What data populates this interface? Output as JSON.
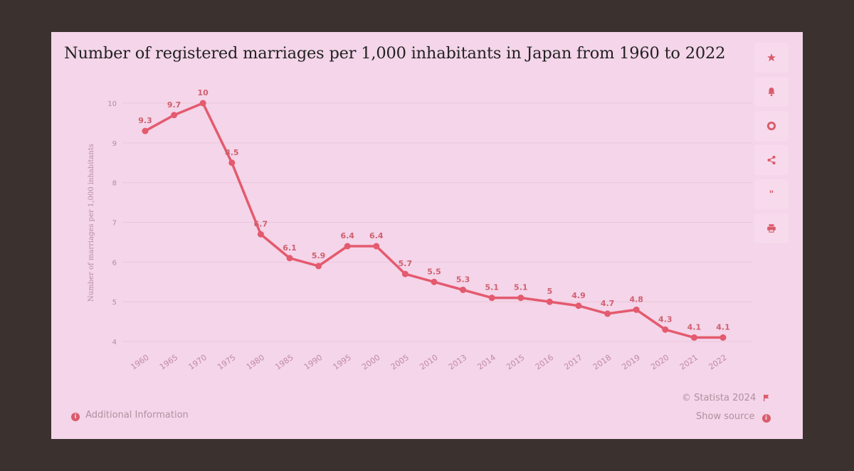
{
  "chart_data": {
    "type": "line",
    "title": "Number of registered marriages per 1,000 inhabitants in Japan from 1960 to 2022",
    "xlabel": "",
    "ylabel": "Number of marriages per 1,000 inhabitants",
    "ylim": [
      4,
      10
    ],
    "yticks": [
      "4",
      "5",
      "6",
      "7",
      "8",
      "9",
      "10"
    ],
    "categories": [
      "1960",
      "1965",
      "1970",
      "1975",
      "1980",
      "1985",
      "1990",
      "1995",
      "2000",
      "2005",
      "2010",
      "2013",
      "2014",
      "2015",
      "2016",
      "2017",
      "2018",
      "2019",
      "2020",
      "2021",
      "2022"
    ],
    "series": [
      {
        "values": [
          9.3,
          9.7,
          10,
          8.5,
          6.7,
          6.1,
          5.9,
          6.4,
          6.4,
          5.7,
          5.5,
          5.3,
          5.1,
          5.1,
          5,
          4.9,
          4.7,
          4.8,
          4.3,
          4.1,
          4.1
        ]
      }
    ],
    "grid": true,
    "data_labels": true,
    "line_color": "#e45a6e"
  },
  "toolbar": [
    {
      "name": "favorite-star-icon",
      "symbol": "★"
    },
    {
      "name": "notification-bell-icon",
      "symbol": "bell"
    },
    {
      "name": "settings-gear-icon",
      "symbol": "gear"
    },
    {
      "name": "share-icon",
      "symbol": "share"
    },
    {
      "name": "cite-quote-icon",
      "symbol": "❝"
    },
    {
      "name": "print-icon",
      "symbol": "print"
    }
  ],
  "footer": {
    "additional_info": "Additional Information",
    "copyright": "© Statista 2024",
    "show_source": "Show source"
  }
}
